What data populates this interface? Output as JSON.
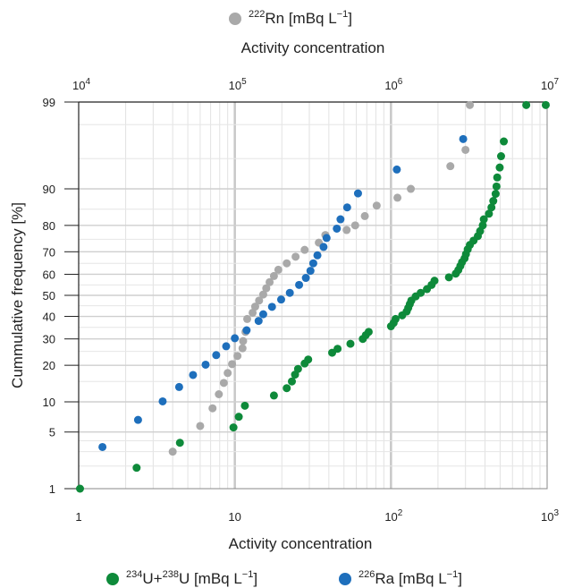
{
  "chart_data": {
    "type": "scatter",
    "title": "",
    "xlabel": "Activity concentration",
    "x2label": "Activity concentration",
    "ylabel": "Cummulative frequency [%]",
    "x_scale": "log",
    "x2_scale": "log",
    "y_scale": "probability",
    "xlim": [
      1,
      1000
    ],
    "x2lim": [
      10000,
      10000000
    ],
    "ylim": [
      1,
      99
    ],
    "x_ticks": [
      {
        "value": 1,
        "base": "1",
        "exp": ""
      },
      {
        "value": 10,
        "base": "10",
        "exp": ""
      },
      {
        "value": 100,
        "base": "10",
        "exp": "2"
      },
      {
        "value": 1000,
        "base": "10",
        "exp": "3"
      }
    ],
    "x2_ticks": [
      {
        "value": 10000,
        "base": "10",
        "exp": "4"
      },
      {
        "value": 100000,
        "base": "10",
        "exp": "5"
      },
      {
        "value": 1000000,
        "base": "10",
        "exp": "6"
      },
      {
        "value": 10000000,
        "base": "10",
        "exp": "7"
      }
    ],
    "y_ticks": [
      1,
      5,
      10,
      20,
      30,
      40,
      50,
      60,
      70,
      80,
      90,
      99
    ],
    "grid": true,
    "series": [
      {
        "name": "222Rn [mBq L−1]",
        "legend": {
          "pre": "",
          "sup": "222",
          "main": "Rn [mBq L",
          "sup2": "−1",
          "post": "]"
        },
        "axis": "top",
        "color": "#a9a9a9",
        "points": [
          [
            40000,
            3.0
          ],
          [
            60000,
            5.8
          ],
          [
            72000,
            8.7
          ],
          [
            79000,
            11.7
          ],
          [
            85000,
            14.6
          ],
          [
            90000,
            17.5
          ],
          [
            96000,
            20.4
          ],
          [
            104000,
            23.3
          ],
          [
            112000,
            26.2
          ],
          [
            113000,
            29.1
          ],
          [
            117000,
            33.0
          ],
          [
            120000,
            38.8
          ],
          [
            130000,
            41.7
          ],
          [
            135000,
            44.6
          ],
          [
            143000,
            47.5
          ],
          [
            152000,
            50.4
          ],
          [
            159000,
            53.4
          ],
          [
            167000,
            56.3
          ],
          [
            178000,
            59.2
          ],
          [
            190000,
            62.1
          ],
          [
            215000,
            65.0
          ],
          [
            245000,
            67.9
          ],
          [
            280000,
            70.8
          ],
          [
            345000,
            73.7
          ],
          [
            380000,
            76.6
          ],
          [
            520000,
            78.4
          ],
          [
            590000,
            80.0
          ],
          [
            680000,
            83.0
          ],
          [
            810000,
            86.0
          ],
          [
            1100000,
            88.0
          ],
          [
            1340000,
            90.0
          ],
          [
            2400000,
            94.0
          ],
          [
            3000000,
            96.0
          ],
          [
            3200000,
            98.9
          ]
        ]
      },
      {
        "name": "234U+238U [mBq L−1]",
        "legend": {
          "pre": "",
          "sup": "234",
          "main": "U+",
          "sup2": "238",
          "post": "U [mBq L",
          "sup3": "−1",
          "end": "]"
        },
        "axis": "bottom",
        "color": "#0e8a3a",
        "points": [
          [
            1.02,
            1.0
          ],
          [
            2.35,
            1.9
          ],
          [
            4.45,
            3.8
          ],
          [
            9.8,
            5.6
          ],
          [
            10.6,
            7.2
          ],
          [
            11.6,
            9.2
          ],
          [
            17.8,
            11.4
          ],
          [
            21.5,
            13.2
          ],
          [
            23.2,
            15.0
          ],
          [
            24.3,
            17.0
          ],
          [
            25.4,
            18.8
          ],
          [
            28.0,
            20.6
          ],
          [
            29.5,
            22.0
          ],
          [
            42.0,
            24.5
          ],
          [
            45.5,
            26.0
          ],
          [
            55.0,
            28.0
          ],
          [
            66.0,
            30.0
          ],
          [
            69.0,
            31.6
          ],
          [
            72.0,
            33.0
          ],
          [
            100.0,
            35.5
          ],
          [
            104.0,
            37.0
          ],
          [
            107.0,
            38.8
          ],
          [
            118.0,
            40.5
          ],
          [
            126.0,
            42.3
          ],
          [
            129.0,
            44.0
          ],
          [
            132.0,
            45.8
          ],
          [
            135.0,
            47.5
          ],
          [
            144.0,
            49.5
          ],
          [
            155.0,
            51.2
          ],
          [
            170.0,
            53.0
          ],
          [
            182.0,
            55.0
          ],
          [
            190.0,
            57.0
          ],
          [
            235.0,
            58.6
          ],
          [
            260.0,
            60.3
          ],
          [
            270.0,
            62.0
          ],
          [
            278.0,
            63.8
          ],
          [
            285.0,
            65.5
          ],
          [
            296.0,
            67.2
          ],
          [
            302.0,
            69.0
          ],
          [
            310.0,
            71.0
          ],
          [
            320.0,
            72.8
          ],
          [
            338.0,
            74.5
          ],
          [
            360.0,
            76.2
          ],
          [
            372.0,
            78.0
          ],
          [
            387.0,
            80.0
          ],
          [
            393.0,
            82.0
          ],
          [
            424.0,
            83.7
          ],
          [
            440.0,
            85.5
          ],
          [
            452.0,
            87.2
          ],
          [
            468.0,
            88.9
          ],
          [
            474.0,
            90.5
          ],
          [
            479.0,
            92.2
          ],
          [
            497.0,
            93.8
          ],
          [
            507.0,
            95.3
          ],
          [
            528.0,
            96.8
          ],
          [
            735.0,
            98.9
          ],
          [
            980.0,
            98.9
          ]
        ]
      },
      {
        "name": "226Ra [mBq L−1]",
        "legend": {
          "pre": "",
          "sup": "226",
          "main": "Ra [mBq L",
          "sup2": "−1",
          "post": "]"
        },
        "axis": "bottom",
        "color": "#1e6fbc",
        "points": [
          [
            1.42,
            3.4
          ],
          [
            2.4,
            6.7
          ],
          [
            3.45,
            10.1
          ],
          [
            4.4,
            13.5
          ],
          [
            5.4,
            16.9
          ],
          [
            6.5,
            20.2
          ],
          [
            7.6,
            23.6
          ],
          [
            8.8,
            27.0
          ],
          [
            10.0,
            30.3
          ],
          [
            11.9,
            33.7
          ],
          [
            14.2,
            37.9
          ],
          [
            15.2,
            41.0
          ],
          [
            17.3,
            44.5
          ],
          [
            19.8,
            48.0
          ],
          [
            22.5,
            51.2
          ],
          [
            25.8,
            55.0
          ],
          [
            28.5,
            58.3
          ],
          [
            30.5,
            61.6
          ],
          [
            31.8,
            65.0
          ],
          [
            33.8,
            68.5
          ],
          [
            37.0,
            72.0
          ],
          [
            38.7,
            75.5
          ],
          [
            45.0,
            78.9
          ],
          [
            47.5,
            82.0
          ],
          [
            52.4,
            85.5
          ],
          [
            61.5,
            89.0
          ],
          [
            109.0,
            93.5
          ],
          [
            290.0,
            97.0
          ],
          [
            680000,
            98.9
          ]
        ]
      }
    ]
  }
}
